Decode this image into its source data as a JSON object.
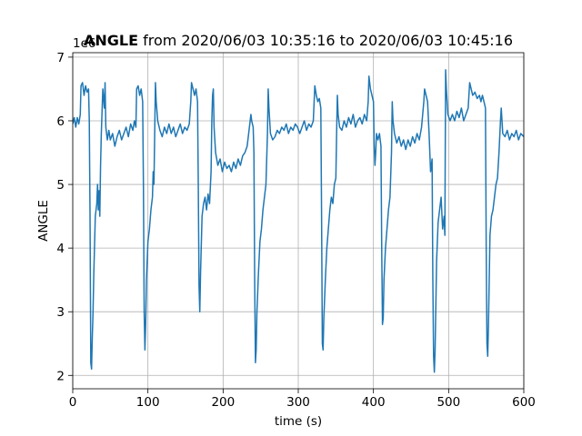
{
  "chart_data": {
    "type": "line",
    "title_bold": "ANGLE",
    "title": "from 2020/06/03 10:35:16 to 2020/06/03 10:45:16",
    "x_label": "time (s)",
    "y_label": "ANGLE",
    "y_offset_label": "1e6",
    "grid": true,
    "xlim": [
      0,
      600
    ],
    "xticks": [
      0,
      100,
      200,
      300,
      400,
      500,
      600
    ],
    "ylim": [
      1.79,
      7.07
    ],
    "yticks": [
      2,
      3,
      4,
      5,
      6,
      7
    ],
    "series": [
      {
        "color": "#1f77b4",
        "x": [
          0,
          2,
          4,
          6,
          8,
          10,
          11,
          13,
          15,
          17,
          19,
          21,
          22,
          23,
          24,
          25,
          26,
          27,
          28,
          30,
          32,
          33,
          34,
          35,
          36,
          37,
          38,
          40,
          42,
          43,
          44,
          46,
          48,
          50,
          53,
          56,
          59,
          62,
          65,
          68,
          71,
          74,
          77,
          80,
          82,
          84,
          85,
          87,
          89,
          91,
          93,
          94,
          95,
          96,
          97,
          98,
          100,
          102,
          104,
          106,
          107,
          108,
          109,
          110,
          111,
          113,
          116,
          119,
          122,
          125,
          128,
          131,
          134,
          137,
          140,
          143,
          146,
          149,
          152,
          155,
          157,
          158,
          160,
          162,
          164,
          166,
          167,
          168,
          169,
          170,
          172,
          174,
          176,
          178,
          180,
          182,
          184,
          185,
          186,
          187,
          188,
          190,
          193,
          196,
          199,
          202,
          205,
          208,
          211,
          214,
          217,
          220,
          223,
          226,
          229,
          232,
          235,
          237,
          238,
          240,
          241,
          242,
          243,
          244,
          245,
          247,
          249,
          251,
          253,
          255,
          257,
          259,
          260,
          261,
          263,
          266,
          269,
          272,
          275,
          278,
          281,
          284,
          287,
          290,
          293,
          296,
          299,
          302,
          305,
          308,
          311,
          314,
          317,
          320,
          322,
          324,
          326,
          328,
          330,
          331,
          332,
          333,
          334,
          336,
          338,
          340,
          342,
          344,
          346,
          348,
          350,
          351,
          352,
          353,
          355,
          358,
          361,
          364,
          367,
          370,
          373,
          376,
          379,
          382,
          385,
          388,
          391,
          393,
          394,
          396,
          398,
          400,
          401,
          402,
          403,
          404,
          406,
          408,
          410,
          411,
          412,
          413,
          414,
          416,
          418,
          420,
          422,
          424,
          425,
          426,
          428,
          431,
          434,
          437,
          440,
          443,
          446,
          449,
          452,
          455,
          458,
          461,
          464,
          467,
          468,
          470,
          472,
          474,
          476,
          478,
          479,
          480,
          481,
          482,
          484,
          486,
          488,
          490,
          492,
          494,
          495,
          496,
          497,
          499,
          502,
          505,
          508,
          511,
          514,
          517,
          520,
          523,
          526,
          528,
          530,
          532,
          535,
          538,
          541,
          543,
          545,
          547,
          549,
          550,
          551,
          552,
          553,
          555,
          557,
          559,
          561,
          563,
          565,
          567,
          569,
          570,
          572,
          575,
          578,
          581,
          584,
          587,
          590,
          593,
          596,
          600
        ],
        "values": [
          5.95,
          6.05,
          5.9,
          6.05,
          5.95,
          6.1,
          6.55,
          6.6,
          6.4,
          6.55,
          6.45,
          6.5,
          6.0,
          4.5,
          2.2,
          2.1,
          2.6,
          3.0,
          3.6,
          4.5,
          4.7,
          5.0,
          4.6,
          4.9,
          4.5,
          5.3,
          5.8,
          6.5,
          6.2,
          6.6,
          5.9,
          5.7,
          5.85,
          5.7,
          5.8,
          5.6,
          5.75,
          5.85,
          5.7,
          5.8,
          5.9,
          5.75,
          5.95,
          5.85,
          6.0,
          5.9,
          6.5,
          6.55,
          6.4,
          6.5,
          6.3,
          5.0,
          3.0,
          2.4,
          2.8,
          3.5,
          4.1,
          4.3,
          4.6,
          4.8,
          5.2,
          5.0,
          5.8,
          6.6,
          6.3,
          6.0,
          5.85,
          5.75,
          5.9,
          5.8,
          5.95,
          5.8,
          5.9,
          5.75,
          5.85,
          5.95,
          5.8,
          5.9,
          5.85,
          5.95,
          6.3,
          6.6,
          6.5,
          6.4,
          6.5,
          6.3,
          5.0,
          3.4,
          3.0,
          3.6,
          4.5,
          4.7,
          4.8,
          4.6,
          4.85,
          4.7,
          5.2,
          6.0,
          6.4,
          6.5,
          5.9,
          5.5,
          5.3,
          5.4,
          5.2,
          5.35,
          5.25,
          5.3,
          5.2,
          5.35,
          5.25,
          5.4,
          5.3,
          5.45,
          5.5,
          5.6,
          5.9,
          6.1,
          6.0,
          5.9,
          5.5,
          3.5,
          2.2,
          2.4,
          3.0,
          3.6,
          4.1,
          4.3,
          4.6,
          4.8,
          5.0,
          5.8,
          6.5,
          6.2,
          5.8,
          5.7,
          5.75,
          5.85,
          5.8,
          5.9,
          5.85,
          5.95,
          5.8,
          5.9,
          5.85,
          5.95,
          5.9,
          5.8,
          5.9,
          6.0,
          5.85,
          5.95,
          5.9,
          6.0,
          6.55,
          6.4,
          6.3,
          6.35,
          6.2,
          4.5,
          2.5,
          2.4,
          2.9,
          3.5,
          4.0,
          4.3,
          4.6,
          4.8,
          4.7,
          5.0,
          5.1,
          5.8,
          6.4,
          6.1,
          5.9,
          5.85,
          6.0,
          5.9,
          6.05,
          5.95,
          6.1,
          5.9,
          6.0,
          6.05,
          5.95,
          6.1,
          6.0,
          6.3,
          6.7,
          6.5,
          6.4,
          6.3,
          5.6,
          5.3,
          5.5,
          5.8,
          5.7,
          5.8,
          5.6,
          4.0,
          2.8,
          2.9,
          3.5,
          4.0,
          4.3,
          4.6,
          4.8,
          5.5,
          6.3,
          6.0,
          5.8,
          5.65,
          5.75,
          5.6,
          5.7,
          5.55,
          5.7,
          5.6,
          5.75,
          5.65,
          5.8,
          5.7,
          5.9,
          6.3,
          6.5,
          6.4,
          6.3,
          5.8,
          5.2,
          5.4,
          3.5,
          2.3,
          2.05,
          2.4,
          3.8,
          4.4,
          4.6,
          4.8,
          4.3,
          4.5,
          4.2,
          6.8,
          6.5,
          6.1,
          6.0,
          6.1,
          6.0,
          6.15,
          6.05,
          6.2,
          6.0,
          6.1,
          6.2,
          6.6,
          6.5,
          6.4,
          6.45,
          6.35,
          6.4,
          6.3,
          6.4,
          6.3,
          6.2,
          4.0,
          2.5,
          2.3,
          2.8,
          4.2,
          4.5,
          4.6,
          4.8,
          5.0,
          5.1,
          5.5,
          6.0,
          6.2,
          5.8,
          5.75,
          5.85,
          5.7,
          5.8,
          5.75,
          5.85,
          5.7,
          5.8,
          5.75
        ]
      }
    ]
  }
}
